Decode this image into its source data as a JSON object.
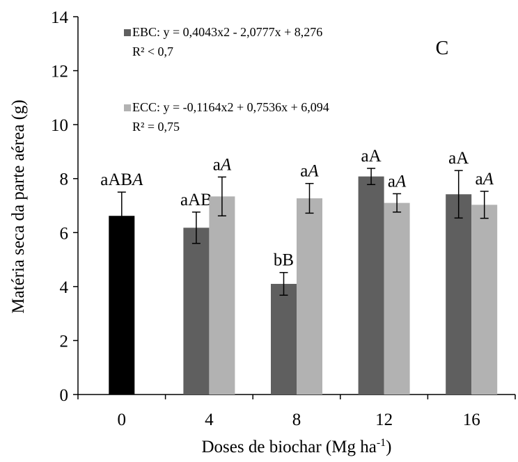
{
  "chart_data": {
    "type": "bar",
    "panel_label": "C",
    "xlabel": "Doses de biochar (Mg ha",
    "xlabel_sup": "-1",
    "xlabel_end": ")",
    "ylabel": "Matéria seca da parte aérea  (g)",
    "ylim": [
      0,
      14
    ],
    "yticks": [
      "0",
      "2",
      "4",
      "6",
      "8",
      "10",
      "12",
      "14"
    ],
    "categories": [
      "0",
      "4",
      "8",
      "12",
      "16"
    ],
    "colors": {
      "control": "#000000",
      "ebc": "#5f5f5f",
      "ecc": "#b2b2b2"
    },
    "control": {
      "category": "0",
      "value": 6.62,
      "error": 0.88,
      "label": "aAB",
      "label_italic": "A"
    },
    "series": [
      {
        "name": "EBC",
        "equation": "EBC: y = 0,4043x2 - 2,0777x + 8,276",
        "r2": "R² < 0,7",
        "values": [
          null,
          6.18,
          4.1,
          8.08,
          7.42
        ],
        "errors": [
          null,
          0.58,
          0.42,
          0.3,
          0.88
        ],
        "labels": [
          null,
          "aAB",
          "bB",
          "aA",
          "aA"
        ],
        "labels_italic": [
          null,
          "",
          "",
          "",
          ""
        ]
      },
      {
        "name": "ECC",
        "equation": "ECC: y = -0,1164x2 + 0,7536x + 6,094",
        "r2": "R² = 0,75",
        "values": [
          null,
          7.34,
          7.27,
          7.1,
          7.03
        ],
        "errors": [
          null,
          0.72,
          0.55,
          0.34,
          0.5
        ],
        "labels": [
          null,
          "a",
          "a",
          "a",
          "a"
        ],
        "labels_italic": [
          null,
          "A",
          "A",
          "A",
          "A"
        ]
      }
    ]
  }
}
